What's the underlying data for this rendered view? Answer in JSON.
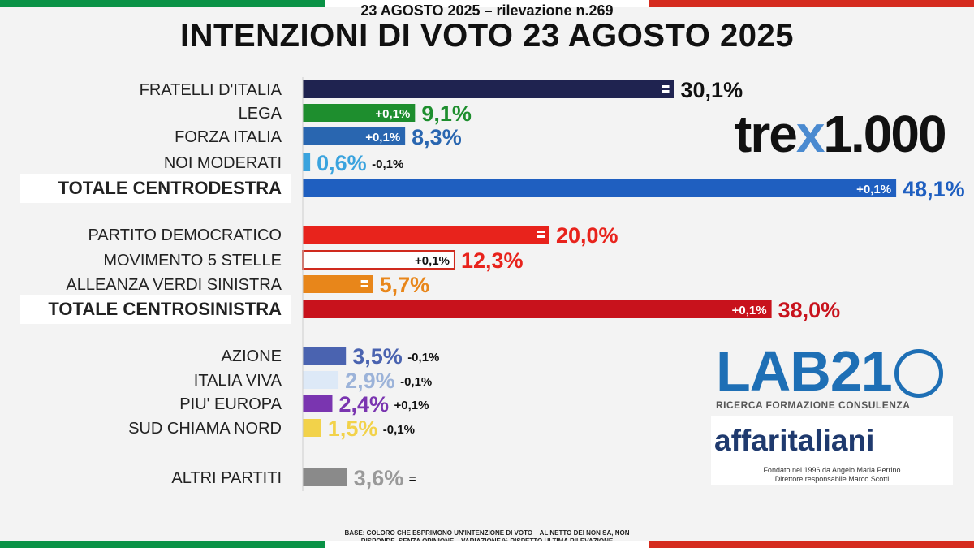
{
  "header": {
    "subtitle": "23 AGOSTO 2025 – rilevazione n.269",
    "title": "INTENZIONI DI VOTO 23 AGOSTO 2025"
  },
  "colors": {
    "green": "#0a9246",
    "white": "#ffffff",
    "red": "#d52b1e"
  },
  "chart_data": {
    "type": "bar",
    "orientation": "horizontal",
    "xlim": [
      0,
      50
    ],
    "grid": false,
    "rows": [
      {
        "label": "FRATELLI D'ITALIA",
        "value": 30.1,
        "value_label": "30,1%",
        "change": "=",
        "color": "#1f2350",
        "value_color": "#111111",
        "change_inside": true,
        "total": false
      },
      {
        "label": "LEGA",
        "value": 9.1,
        "value_label": "9,1%",
        "change": "+0,1%",
        "color": "#1e8e2e",
        "value_color": "#1e8e2e",
        "change_inside": true,
        "total": false
      },
      {
        "label": "FORZA ITALIA",
        "value": 8.3,
        "value_label": "8,3%",
        "change": "+0,1%",
        "color": "#2966b0",
        "value_color": "#2966b0",
        "change_inside": true,
        "total": false
      },
      {
        "label": "NOI MODERATI",
        "value": 0.6,
        "value_label": "0,6%",
        "change": "-0,1%",
        "color": "#3aa3de",
        "value_color": "#3aa3de",
        "change_inside": false,
        "total": false
      },
      {
        "label": "TOTALE CENTRODESTRA",
        "value": 48.1,
        "value_label": "48,1%",
        "change": "+0,1%",
        "color": "#1f5fc0",
        "value_color": "#1f5fc0",
        "label_color": "#1f5fa8",
        "change_inside": true,
        "total": true
      },
      {
        "label": "PARTITO DEMOCRATICO",
        "value": 20.0,
        "value_label": "20,0%",
        "change": "=",
        "color": "#e8231c",
        "value_color": "#e8231c",
        "change_inside": true,
        "total": false
      },
      {
        "label": "MOVIMENTO 5 STELLE",
        "value": 12.3,
        "value_label": "12,3%",
        "change": "+0,1%",
        "color": "#ffffff",
        "stroke": "#d02a1e",
        "value_color": "#e8231c",
        "change_inside": true,
        "total": false
      },
      {
        "label": "ALLEANZA VERDI SINISTRA",
        "value": 5.7,
        "value_label": "5,7%",
        "change": "=",
        "color": "#e8861a",
        "value_color": "#e8861a",
        "change_inside": true,
        "total": false
      },
      {
        "label": "TOTALE CENTROSINISTRA",
        "value": 38.0,
        "value_label": "38,0%",
        "change": "+0,1%",
        "color": "#c8121c",
        "value_color": "#c8121c",
        "label_color": "#c8121c",
        "change_inside": true,
        "total": true
      },
      {
        "label": "AZIONE",
        "value": 3.5,
        "value_label": "3,5%",
        "change": "-0,1%",
        "color": "#4a63b0",
        "value_color": "#4a63b0",
        "change_inside": false,
        "total": false
      },
      {
        "label": "ITALIA VIVA",
        "value": 2.9,
        "value_label": "2,9%",
        "change": "-0,1%",
        "color": "#dde9f7",
        "value_color": "#9cb3d9",
        "change_inside": false,
        "total": false
      },
      {
        "label": "PIU' EUROPA",
        "value": 2.4,
        "value_label": "2,4%",
        "change": "+0,1%",
        "color": "#7a35b0",
        "value_color": "#7a35b0",
        "change_inside": false,
        "total": false
      },
      {
        "label": "SUD CHIAMA NORD",
        "value": 1.5,
        "value_label": "1,5%",
        "change": "-0,1%",
        "color": "#f2d24a",
        "value_color": "#f2d24a",
        "change_inside": false,
        "total": false
      },
      {
        "label": "ALTRI PARTITI",
        "value": 3.6,
        "value_label": "3,6%",
        "change": "=",
        "color": "#8a8a8a",
        "value_color": "#999999",
        "change_inside": false,
        "total": false
      }
    ]
  },
  "logos": {
    "trex_left": "tre",
    "trex_x": "x",
    "trex_right": "1.000",
    "lab21_name": "LAB21",
    "lab21_tagline": "RICERCA FORMAZIONE CONSULENZA",
    "affaritaliani_name": "affaritaliani",
    "affaritaliani_line1": "Fondato nel 1996 da Angelo Maria Perrino",
    "affaritaliani_line2": "Direttore responsabile Marco Scotti"
  },
  "footnote": {
    "line1": "BASE: COLORO CHE ESPRIMONO UN'INTENZIONE DI VOTO – AL NETTO DEI NON SA, NON",
    "line2": "RISPONDE, SENZA OPINIONE – VARIAZIONE % RISPETTO ULTIMA RILEVAZIONE"
  }
}
